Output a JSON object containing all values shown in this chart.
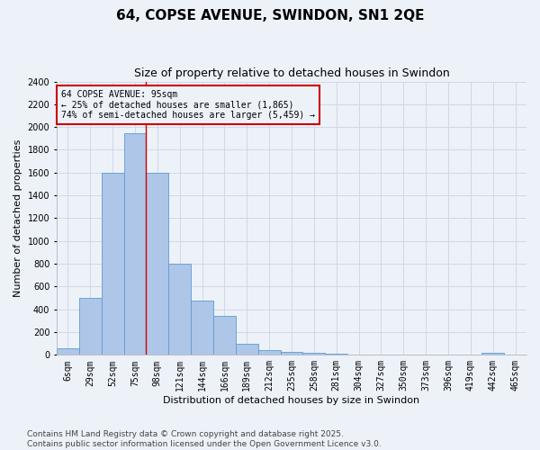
{
  "title": "64, COPSE AVENUE, SWINDON, SN1 2QE",
  "subtitle": "Size of property relative to detached houses in Swindon",
  "xlabel": "Distribution of detached houses by size in Swindon",
  "ylabel": "Number of detached properties",
  "footer": "Contains HM Land Registry data © Crown copyright and database right 2025.\nContains public sector information licensed under the Open Government Licence v3.0.",
  "categories": [
    "6sqm",
    "29sqm",
    "52sqm",
    "75sqm",
    "98sqm",
    "121sqm",
    "144sqm",
    "166sqm",
    "189sqm",
    "212sqm",
    "235sqm",
    "258sqm",
    "281sqm",
    "304sqm",
    "327sqm",
    "350sqm",
    "373sqm",
    "396sqm",
    "419sqm",
    "442sqm",
    "465sqm"
  ],
  "values": [
    55,
    500,
    1600,
    1950,
    1600,
    800,
    475,
    340,
    100,
    40,
    25,
    15,
    10,
    0,
    0,
    0,
    0,
    0,
    0,
    20,
    0
  ],
  "bar_color": "#aec6e8",
  "bar_edge_color": "#5b9bd5",
  "grid_color": "#d0d8e8",
  "background_color": "#edf2f9",
  "annotation_box_text": "64 COPSE AVENUE: 95sqm\n← 25% of detached houses are smaller (1,865)\n74% of semi-detached houses are larger (5,459) →",
  "annotation_box_color": "#cc0000",
  "red_line_x": 3.5,
  "ylim": [
    0,
    2400
  ],
  "yticks": [
    0,
    200,
    400,
    600,
    800,
    1000,
    1200,
    1400,
    1600,
    1800,
    2000,
    2200,
    2400
  ],
  "title_fontsize": 11,
  "subtitle_fontsize": 9,
  "xlabel_fontsize": 8,
  "ylabel_fontsize": 8,
  "tick_fontsize": 7,
  "footer_fontsize": 6.5,
  "ann_fontsize": 7
}
